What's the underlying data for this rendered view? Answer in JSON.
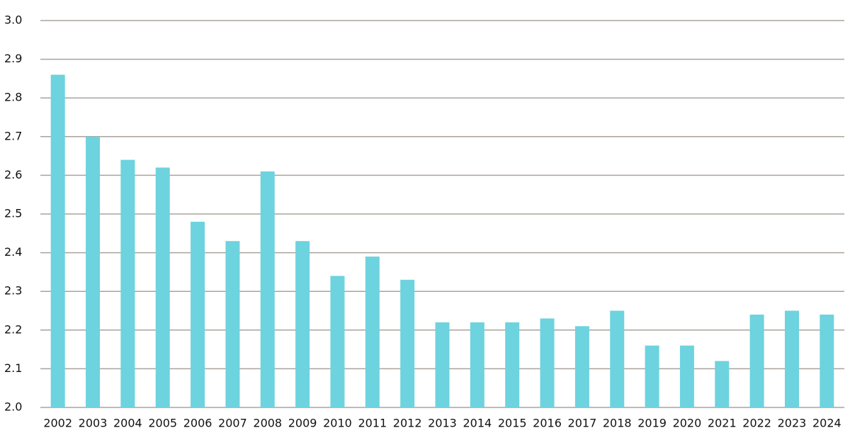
{
  "chart_data": {
    "type": "bar",
    "categories": [
      "2002",
      "2003",
      "2004",
      "2005",
      "2006",
      "2007",
      "2008",
      "2009",
      "2010",
      "2011",
      "2012",
      "2013",
      "2014",
      "2015",
      "2016",
      "2017",
      "2018",
      "2019",
      "2020",
      "2021",
      "2022",
      "2023",
      "2024"
    ],
    "values": [
      2.86,
      2.7,
      2.64,
      2.62,
      2.48,
      2.43,
      2.61,
      2.43,
      2.34,
      2.39,
      2.33,
      2.22,
      2.22,
      2.22,
      2.23,
      2.21,
      2.25,
      2.16,
      2.16,
      2.12,
      2.24,
      2.25,
      2.24
    ],
    "color": "#6dd3de",
    "ylim": [
      2.0,
      3.0
    ],
    "yticks": [
      {
        "value": 2,
        "label": "2.0"
      },
      2.1,
      2.2,
      2.3,
      2.4,
      2.5,
      2.6,
      2.7,
      2.8,
      2.9,
      {
        "value": 3,
        "label": "3.0"
      }
    ],
    "grid": true
  }
}
